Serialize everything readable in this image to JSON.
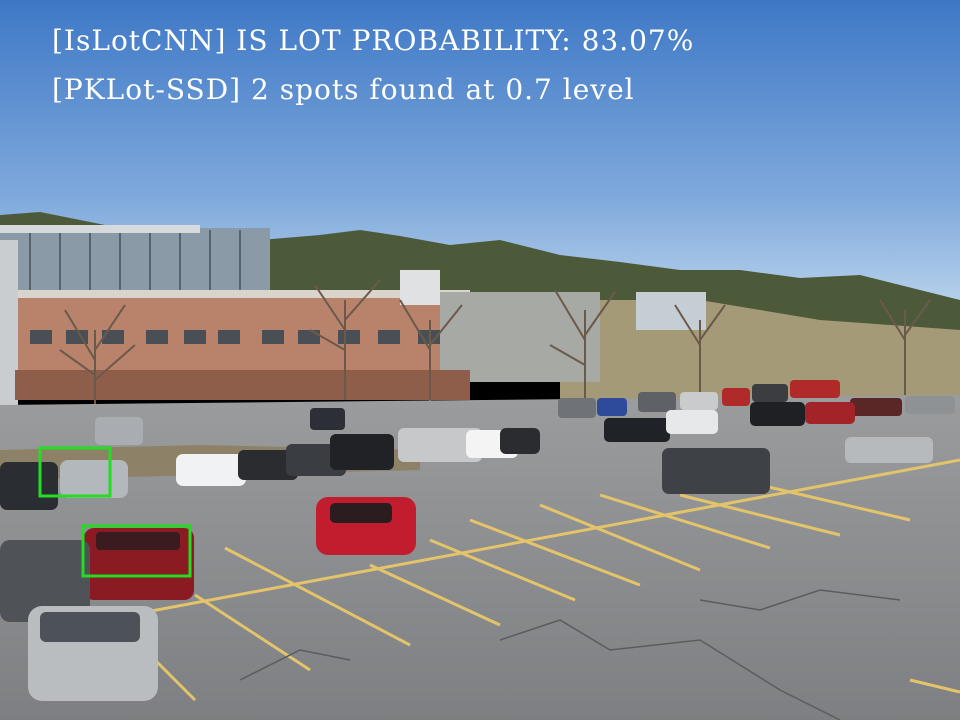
{
  "overlay": {
    "line1": "[IsLotCNN] IS LOT PROBABILITY: 83.07%",
    "line2": "[PKLot-SSD] 2 spots found at 0.7 level"
  },
  "detections": {
    "box_color": "#22dd22",
    "count": 2
  },
  "colors": {
    "sky_top": "#3f7ac8",
    "sky_bottom": "#b8d2ec",
    "asphalt": "#8a8c8f",
    "line_paint": "#e5c468"
  }
}
